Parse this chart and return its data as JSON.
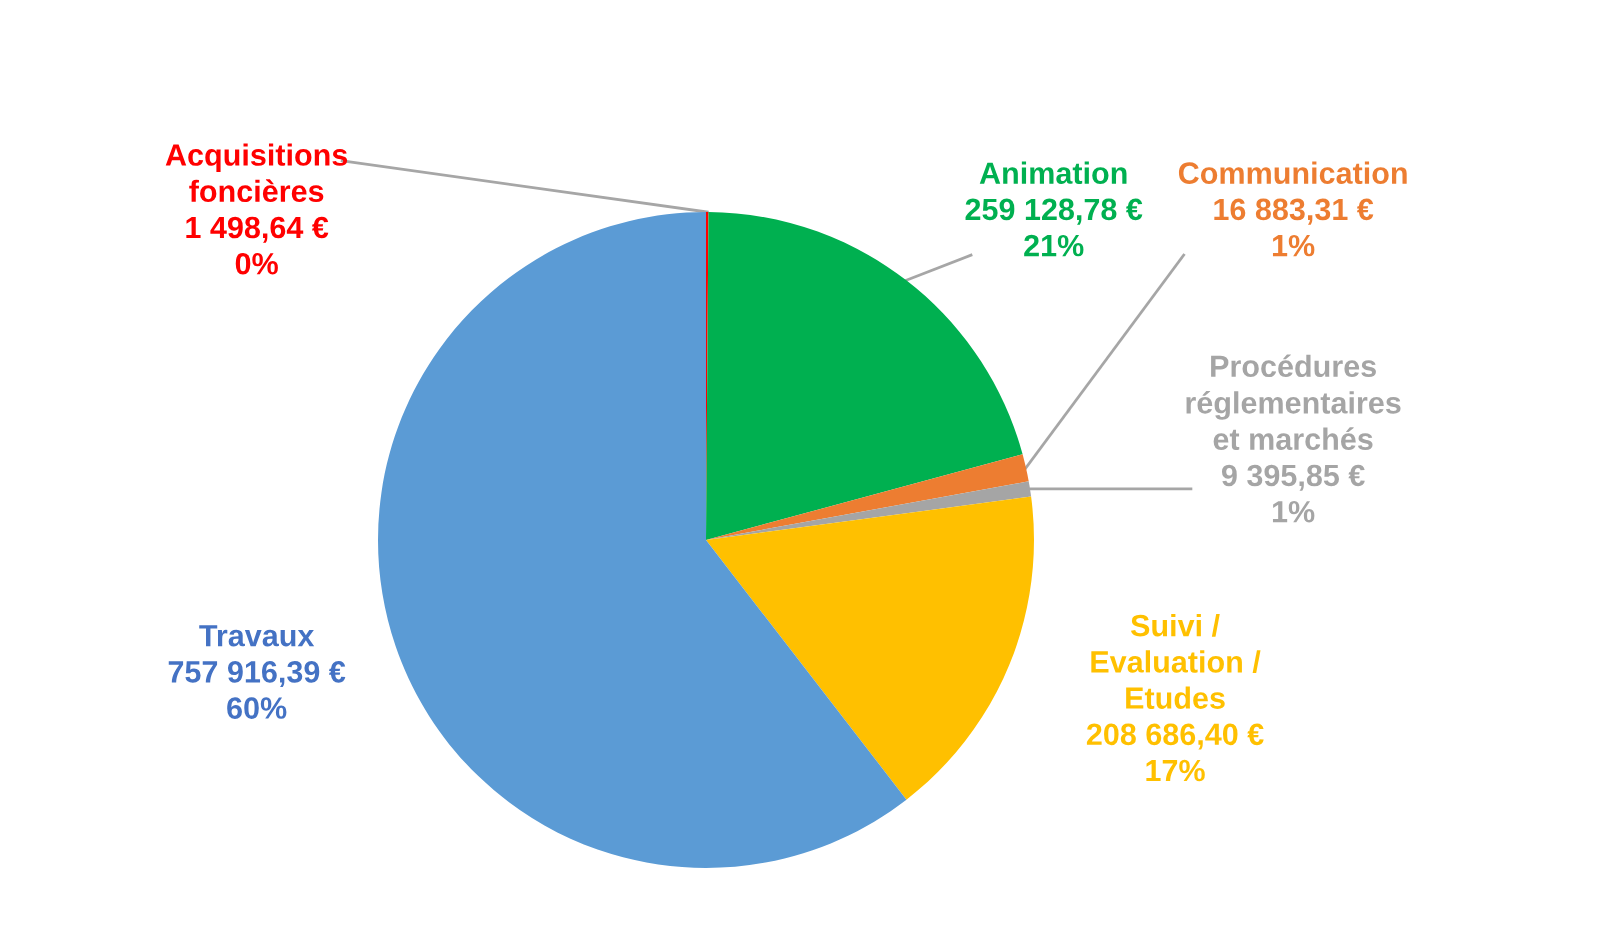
{
  "chart_data": {
    "type": "pie",
    "categories": [
      "Acquisitions\nfoncières",
      "Animation",
      "Communication",
      "Procédures\nréglementaires\net marchés",
      "Suivi /\nEvaluation /\nEtudes",
      "Travaux"
    ],
    "values": [
      1498.64,
      259128.78,
      16883.31,
      9395.85,
      208686.4,
      757916.39
    ],
    "colors": [
      "#ff0000",
      "#00b050",
      "#ed7d31",
      "#a5a5a5",
      "#ffc000",
      "#5b9bd5"
    ],
    "value_labels": [
      "1 498,64 €\n0%",
      "259 128,78 €\n21%",
      "16 883,31 €\n1%",
      "9 395,85 €\n1%",
      "208 686,40 €\n17%",
      "757 916,39 €\n60%"
    ],
    "legend": false
  }
}
